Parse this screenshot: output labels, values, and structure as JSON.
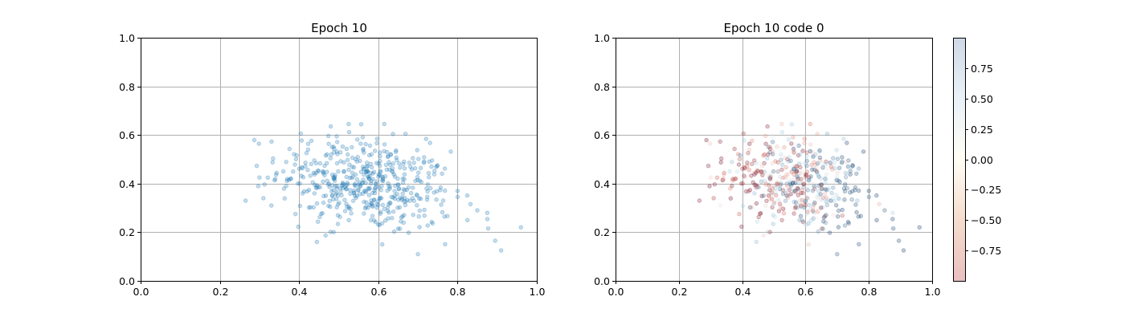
{
  "chart_data": [
    {
      "type": "scatter",
      "title": "Epoch 10",
      "xlabel": "",
      "ylabel": "",
      "xlim": [
        0.0,
        1.0
      ],
      "ylim": [
        0.0,
        1.0
      ],
      "xticks": [
        "0.0",
        "0.2",
        "0.4",
        "0.6",
        "0.8",
        "1.0"
      ],
      "yticks": [
        "0.0",
        "0.2",
        "0.4",
        "0.6",
        "0.8",
        "1.0"
      ],
      "grid": true,
      "marker_color": "#1f77b4",
      "alpha": 0.25,
      "n_points": 500,
      "distribution": {
        "x_mean": 0.57,
        "x_sd": 0.11,
        "y_mean": 0.4,
        "y_sd": 0.095,
        "x_min": 0.26,
        "x_max": 0.96,
        "y_min": 0.11,
        "y_max": 0.65
      },
      "anchor_points": [
        [
          0.265,
          0.33
        ],
        [
          0.3,
          0.425
        ],
        [
          0.31,
          0.34
        ],
        [
          0.33,
          0.31
        ],
        [
          0.96,
          0.22
        ],
        [
          0.91,
          0.125
        ],
        [
          0.895,
          0.165
        ],
        [
          0.875,
          0.28
        ],
        [
          0.85,
          0.29
        ],
        [
          0.825,
          0.25
        ],
        [
          0.8,
          0.37
        ],
        [
          0.7,
          0.11
        ],
        [
          0.615,
          0.645
        ],
        [
          0.525,
          0.645
        ],
        [
          0.48,
          0.635
        ],
        [
          0.445,
          0.16
        ],
        [
          0.61,
          0.15
        ]
      ]
    },
    {
      "type": "scatter",
      "title": "Epoch 10 code 0",
      "xlabel": "",
      "ylabel": "",
      "xlim": [
        0.0,
        1.0
      ],
      "ylim": [
        0.0,
        1.0
      ],
      "xticks": [
        "0.0",
        "0.2",
        "0.4",
        "0.6",
        "0.8",
        "1.0"
      ],
      "yticks": [
        "0.0",
        "0.2",
        "0.4",
        "0.6",
        "0.8",
        "1.0"
      ],
      "grid": true,
      "colormap": "RdBu",
      "alpha": 0.25,
      "note": "same points as panel 1, colored by code 0 value in [-1, 1]",
      "colorbar": {
        "range": [
          -1.0,
          1.0
        ],
        "ticks": [
          "0.75",
          "0.50",
          "0.25",
          "0.00",
          "−0.25",
          "−0.50",
          "−0.75"
        ],
        "tick_values": [
          0.75,
          0.5,
          0.25,
          0.0,
          -0.25,
          -0.5,
          -0.75
        ]
      }
    }
  ]
}
